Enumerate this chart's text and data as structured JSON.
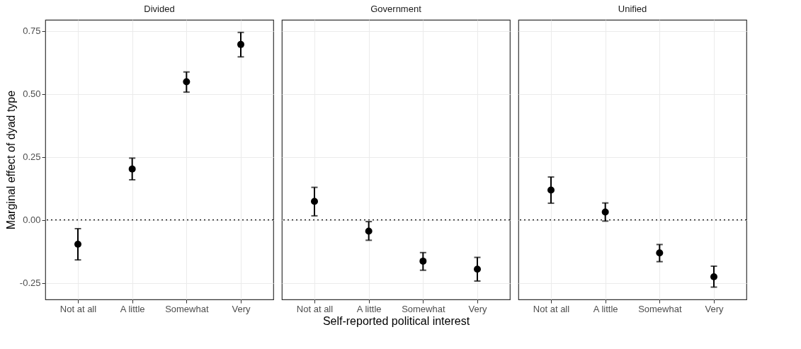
{
  "chart_data": [
    {
      "type": "scatter",
      "title": "Divided",
      "ylabel": "Marginal effect of dyad type",
      "categories": [
        "Not at all",
        "A little",
        "Somewhat",
        "Very"
      ],
      "values": [
        -0.097,
        0.202,
        0.548,
        0.696
      ],
      "errors": [
        [
          -0.159,
          -0.035
        ],
        [
          0.159,
          0.245
        ],
        [
          0.507,
          0.587
        ],
        [
          0.647,
          0.744
        ]
      ],
      "color": "#000000",
      "marker": "circle",
      "ylim": [
        -0.316,
        0.794
      ],
      "yticks": [
        -0.25,
        {
          "value": 0,
          "label": "0.00"
        },
        0.25,
        {
          "value": 0.5,
          "label": "0.50"
        },
        0.75
      ],
      "grid": true,
      "ref_lines": [
        {
          "axis": "y",
          "value": 0,
          "line_style": "dotted",
          "color": "#000000"
        }
      ]
    },
    {
      "type": "scatter",
      "title": "Government",
      "xlabel": "Self-reported political interest",
      "categories": [
        "Not at all",
        "A little",
        "Somewhat",
        "Very"
      ],
      "values": [
        0.073,
        -0.045,
        -0.164,
        -0.196
      ],
      "errors": [
        [
          0.016,
          0.129
        ],
        [
          -0.081,
          -0.007
        ],
        [
          -0.2,
          -0.13
        ],
        [
          -0.243,
          -0.149
        ]
      ],
      "color": "#000000",
      "marker": "circle",
      "ylim": [
        -0.316,
        0.794
      ],
      "yticks": [
        -0.25,
        0,
        0.25,
        0.5,
        0.75
      ],
      "grid": true,
      "tick_labels": "x",
      "ref_lines": [
        {
          "axis": "y",
          "value": 0,
          "line_style": "dotted",
          "color": "#000000"
        }
      ]
    },
    {
      "type": "scatter",
      "title": "Unified",
      "categories": [
        "Not at all",
        "A little",
        "Somewhat",
        "Very"
      ],
      "values": [
        0.118,
        0.031,
        -0.131,
        -0.226
      ],
      "errors": [
        [
          0.066,
          0.17
        ],
        [
          -0.005,
          0.067
        ],
        [
          -0.166,
          -0.098
        ],
        [
          -0.267,
          -0.184
        ]
      ],
      "color": "#000000",
      "marker": "circle",
      "ylim": [
        -0.316,
        0.794
      ],
      "yticks": [
        -0.25,
        0,
        0.25,
        0.5,
        0.75
      ],
      "grid": true,
      "tick_labels": "x",
      "ref_lines": [
        {
          "axis": "y",
          "value": 0,
          "line_style": "dotted",
          "color": "#000000"
        }
      ]
    }
  ]
}
